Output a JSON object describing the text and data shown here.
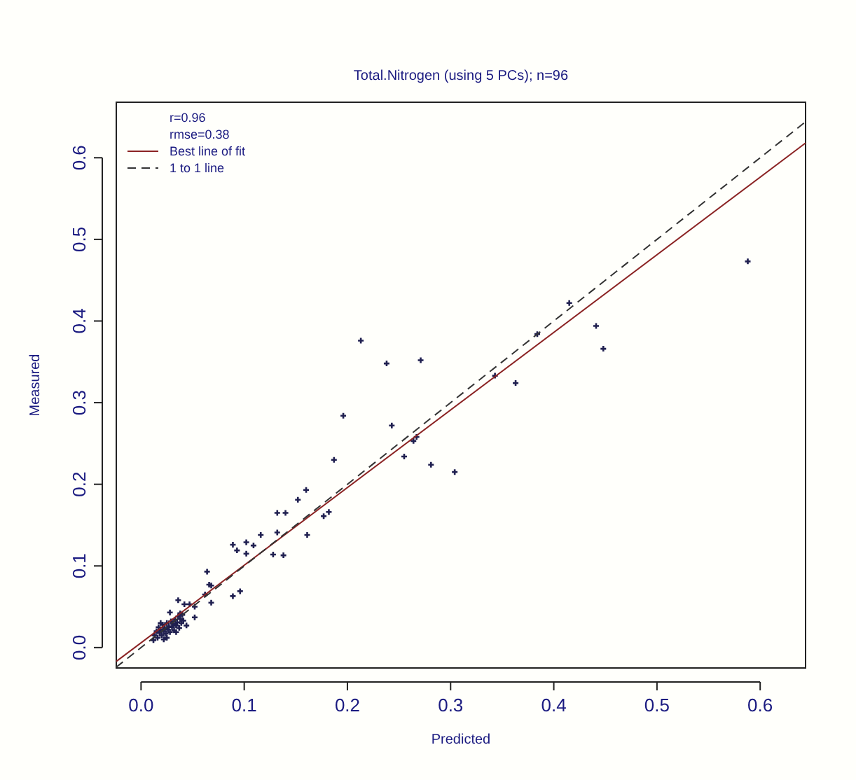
{
  "chart_data": {
    "type": "scatter",
    "title": "Total.Nitrogen (using 5 PCs); n=96",
    "xlabel": "Predicted",
    "ylabel": "Measured",
    "annotations": [
      "r=0.96",
      "rmse=0.38"
    ],
    "xlim": [
      -0.024,
      0.644
    ],
    "ylim": [
      -0.025,
      0.668
    ],
    "xticks": [
      {
        "value": 0,
        "label": "0.0"
      },
      {
        "value": 0.1,
        "label": "0.1"
      },
      {
        "value": 0.2,
        "label": "0.2"
      },
      {
        "value": 0.3,
        "label": "0.3"
      },
      {
        "value": 0.4,
        "label": "0.4"
      },
      {
        "value": 0.5,
        "label": "0.5"
      },
      {
        "value": 0.6,
        "label": "0.6"
      }
    ],
    "yticks": [
      {
        "value": 0,
        "label": "0.0"
      },
      {
        "value": 0.1,
        "label": "0.1"
      },
      {
        "value": 0.2,
        "label": "0.2"
      },
      {
        "value": 0.3,
        "label": "0.3"
      },
      {
        "value": 0.4,
        "label": "0.4"
      },
      {
        "value": 0.5,
        "label": "0.5"
      },
      {
        "value": 0.6,
        "label": "0.6"
      }
    ],
    "grid": false,
    "legend": "top left",
    "series": [
      {
        "color": "#202050",
        "marker": "cross",
        "x": [
          0.213,
          0.238,
          0.271,
          0.196,
          0.243,
          0.264,
          0.267,
          0.255,
          0.281,
          0.304,
          0.187,
          0.343,
          0.363,
          0.384,
          0.415,
          0.441,
          0.448,
          0.16,
          0.152,
          0.132,
          0.14,
          0.182,
          0.177,
          0.116,
          0.132,
          0.161,
          0.109,
          0.128,
          0.138,
          0.588,
          0.089,
          0.093,
          0.102,
          0.102,
          0.064,
          0.066,
          0.068,
          0.062,
          0.068,
          0.089,
          0.096,
          0.036,
          0.042,
          0.047,
          0.052,
          0.052,
          0.044,
          0.028,
          0.038,
          0.034,
          0.022,
          0.012,
          0.013,
          0.015,
          0.016,
          0.017,
          0.018,
          0.019,
          0.02,
          0.021,
          0.022,
          0.023,
          0.024,
          0.025,
          0.026,
          0.027,
          0.028,
          0.029,
          0.03,
          0.031,
          0.032,
          0.033,
          0.034,
          0.035,
          0.036,
          0.037,
          0.038,
          0.039,
          0.04,
          0.041,
          0.019,
          0.025
        ],
        "values": [
          0.376,
          0.348,
          0.352,
          0.284,
          0.272,
          0.253,
          0.258,
          0.234,
          0.224,
          0.215,
          0.23,
          0.333,
          0.324,
          0.384,
          0.422,
          0.394,
          0.366,
          0.193,
          0.181,
          0.165,
          0.165,
          0.166,
          0.161,
          0.138,
          0.141,
          0.138,
          0.125,
          0.114,
          0.113,
          0.473,
          0.126,
          0.119,
          0.129,
          0.115,
          0.093,
          0.077,
          0.076,
          0.065,
          0.055,
          0.063,
          0.069,
          0.058,
          0.053,
          0.053,
          0.05,
          0.037,
          0.027,
          0.043,
          0.042,
          0.019,
          0.01,
          0.009,
          0.015,
          0.02,
          0.012,
          0.025,
          0.018,
          0.022,
          0.015,
          0.028,
          0.02,
          0.024,
          0.017,
          0.03,
          0.022,
          0.026,
          0.019,
          0.032,
          0.025,
          0.029,
          0.021,
          0.034,
          0.027,
          0.031,
          0.038,
          0.024,
          0.035,
          0.03,
          0.04,
          0.033,
          0.03,
          0.012
        ]
      },
      {
        "type": "line",
        "name": "Best line of fit",
        "color": "#8b2323",
        "line_style": "solid",
        "x": [
          -0.024,
          0.644
        ],
        "values": [
          -0.017,
          0.618
        ]
      },
      {
        "type": "line",
        "name": "1 to 1 line",
        "color": "#333333",
        "line_style": "dashed",
        "x": [
          -0.024,
          0.644
        ],
        "values": [
          -0.024,
          0.644
        ]
      }
    ]
  }
}
